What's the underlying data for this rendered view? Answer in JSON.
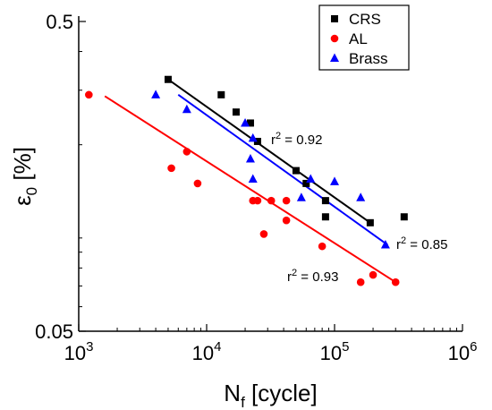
{
  "chart_data": {
    "type": "scatter",
    "x_scale": "log",
    "y_scale": "log",
    "xlim": [
      1000,
      1000000
    ],
    "ylim": [
      0.05,
      0.5
    ],
    "xlabel": {
      "main": "N",
      "sub": "f",
      "rest": " [cycle]"
    },
    "ylabel": {
      "main": "ε",
      "sub": "0",
      "rest": " [%]"
    },
    "x_ticks": [
      {
        "value": 1000,
        "base": "10",
        "exp": "3"
      },
      {
        "value": 10000,
        "base": "10",
        "exp": "4"
      },
      {
        "value": 100000,
        "base": "10",
        "exp": "5"
      },
      {
        "value": 1000000,
        "base": "10",
        "exp": "6"
      }
    ],
    "y_ticks": [
      {
        "value": 0.5,
        "label": "0.5"
      },
      {
        "value": 0.05,
        "label": "0.05"
      }
    ],
    "grid": false,
    "legend_position": "top-right",
    "series": [
      {
        "name": "CRS",
        "color": "#000000",
        "marker": "square",
        "points": [
          [
            5000,
            0.325
          ],
          [
            13000,
            0.29
          ],
          [
            17000,
            0.255
          ],
          [
            22000,
            0.235
          ],
          [
            25000,
            0.205
          ],
          [
            50000,
            0.165
          ],
          [
            60000,
            0.15
          ],
          [
            85000,
            0.132
          ],
          [
            85000,
            0.117
          ],
          [
            190000,
            0.112
          ],
          [
            350000,
            0.117
          ]
        ],
        "fit": {
          "x": [
            5000,
            190000
          ],
          "y": [
            0.325,
            0.112
          ]
        },
        "r2_label": "0.92"
      },
      {
        "name": "AL",
        "color": "#ff0000",
        "marker": "circle",
        "points": [
          [
            1200,
            0.29
          ],
          [
            5300,
            0.168
          ],
          [
            7000,
            0.19
          ],
          [
            8500,
            0.15
          ],
          [
            23000,
            0.132
          ],
          [
            25000,
            0.132
          ],
          [
            32000,
            0.132
          ],
          [
            42000,
            0.132
          ],
          [
            42000,
            0.114
          ],
          [
            28000,
            0.103
          ],
          [
            80000,
            0.094
          ],
          [
            160000,
            0.072
          ],
          [
            200000,
            0.076
          ],
          [
            300000,
            0.072
          ]
        ],
        "fit": {
          "x": [
            1600,
            300000
          ],
          "y": [
            0.287,
            0.072
          ]
        },
        "r2_label": "0.93"
      },
      {
        "name": "Brass",
        "color": "#0000ff",
        "marker": "triangle",
        "points": [
          [
            4000,
            0.29
          ],
          [
            7000,
            0.26
          ],
          [
            20000,
            0.235
          ],
          [
            23000,
            0.21
          ],
          [
            22000,
            0.18
          ],
          [
            23000,
            0.155
          ],
          [
            55000,
            0.135
          ],
          [
            65000,
            0.155
          ],
          [
            100000,
            0.152
          ],
          [
            160000,
            0.135
          ],
          [
            250000,
            0.095
          ]
        ],
        "fit": {
          "x": [
            6000,
            260000
          ],
          "y": [
            0.29,
            0.095
          ]
        },
        "r2_label": "0.85"
      }
    ],
    "annotations": {
      "r2_prefix": "r",
      "r2_sup": "2",
      "r2_mid": " = "
    }
  }
}
